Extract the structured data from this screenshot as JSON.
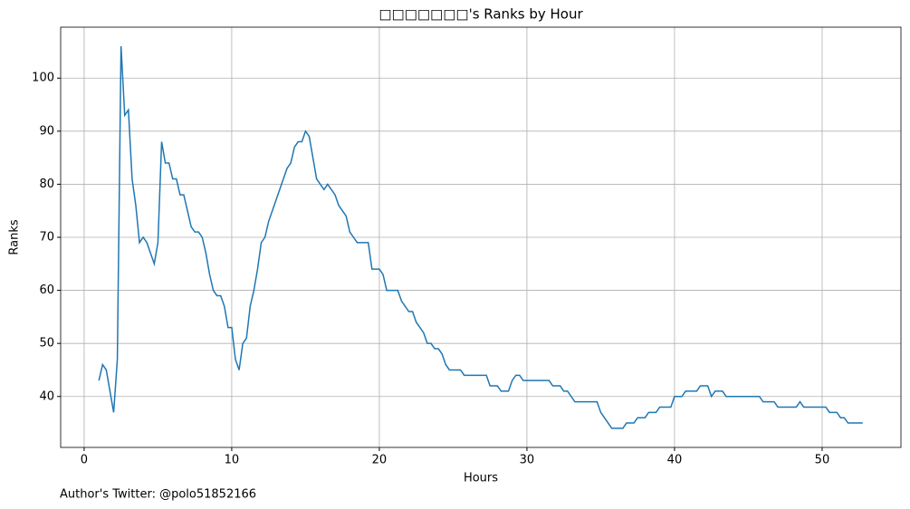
{
  "chart_data": {
    "type": "line",
    "title": "□□□□□□□'s Ranks by Hour",
    "xlabel": "Hours",
    "ylabel": "Ranks",
    "footnote": "Author's Twitter: @polo51852166",
    "x": [
      1,
      1.25,
      1.5,
      1.75,
      2,
      2.25,
      2.5,
      2.75,
      3,
      3.25,
      3.5,
      3.75,
      4,
      4.25,
      4.5,
      4.75,
      5,
      5.25,
      5.5,
      5.75,
      6,
      6.25,
      6.5,
      6.75,
      7,
      7.25,
      7.5,
      7.75,
      8,
      8.25,
      8.5,
      8.75,
      9,
      9.25,
      9.5,
      9.75,
      10,
      10.25,
      10.5,
      10.75,
      11,
      11.25,
      11.5,
      11.75,
      12,
      12.25,
      12.5,
      12.75,
      13,
      13.25,
      13.5,
      13.75,
      14,
      14.25,
      14.5,
      14.75,
      15,
      15.25,
      15.5,
      15.75,
      16,
      16.25,
      16.5,
      16.75,
      17,
      17.25,
      17.5,
      17.75,
      18,
      18.25,
      18.5,
      18.75,
      19,
      19.25,
      19.5,
      19.75,
      20,
      20.25,
      20.5,
      20.75,
      21,
      21.25,
      21.5,
      21.75,
      22,
      22.25,
      22.5,
      22.75,
      23,
      23.25,
      23.5,
      23.75,
      24,
      24.25,
      24.5,
      24.75,
      25,
      25.25,
      25.5,
      25.75,
      26,
      26.25,
      26.5,
      26.75,
      27,
      27.25,
      27.5,
      27.75,
      28,
      28.25,
      28.5,
      28.75,
      29,
      29.25,
      29.5,
      29.75,
      30,
      30.25,
      30.5,
      30.75,
      31,
      31.25,
      31.5,
      31.75,
      32,
      32.25,
      32.5,
      32.75,
      33,
      33.25,
      33.5,
      33.75,
      34,
      34.25,
      34.5,
      34.75,
      35,
      35.25,
      35.5,
      35.75,
      36,
      36.25,
      36.5,
      36.75,
      37,
      37.25,
      37.5,
      37.75,
      38,
      38.25,
      38.5,
      38.75,
      39,
      39.25,
      39.5,
      39.75,
      40,
      40.25,
      40.5,
      40.75,
      41,
      41.25,
      41.5,
      41.75,
      42,
      42.25,
      42.5,
      42.75,
      43,
      43.25,
      43.5,
      43.75,
      44,
      44.25,
      44.5,
      44.75,
      45,
      45.25,
      45.5,
      45.75,
      46,
      46.25,
      46.5,
      46.75,
      47,
      47.25,
      47.5,
      47.75,
      48,
      48.25,
      48.5,
      48.75,
      49,
      49.25,
      49.5,
      49.75,
      50,
      50.25,
      50.5,
      50.75,
      51,
      51.25,
      51.5,
      51.75,
      52,
      52.25,
      52.5,
      52.75
    ],
    "series": [
      {
        "color": "#1f77b4",
        "values": [
          43,
          46,
          45,
          41,
          37,
          47,
          106,
          93,
          94,
          81,
          76,
          69,
          70,
          69,
          67,
          65,
          69,
          88,
          84,
          84,
          81,
          81,
          78,
          78,
          75,
          72,
          71,
          71,
          70,
          67,
          63,
          60,
          59,
          59,
          57,
          53,
          53,
          47,
          45,
          50,
          51,
          57,
          60,
          64,
          69,
          70,
          73,
          75,
          77,
          79,
          81,
          83,
          84,
          87,
          88,
          88,
          90,
          89,
          85,
          81,
          80,
          79,
          80,
          79,
          78,
          76,
          75,
          74,
          71,
          70,
          69,
          69,
          69,
          69,
          64,
          64,
          64,
          63,
          60,
          60,
          60,
          60,
          58,
          57,
          56,
          56,
          54,
          53,
          52,
          50,
          50,
          49,
          49,
          48,
          46,
          45,
          45,
          45,
          45,
          44,
          44,
          44,
          44,
          44,
          44,
          44,
          42,
          42,
          42,
          41,
          41,
          41,
          43,
          44,
          44,
          43,
          43,
          43,
          43,
          43,
          43,
          43,
          43,
          42,
          42,
          42,
          41,
          41,
          40,
          39,
          39,
          39,
          39,
          39,
          39,
          39,
          37,
          36,
          35,
          34,
          34,
          34,
          34,
          35,
          35,
          35,
          36,
          36,
          36,
          37,
          37,
          37,
          38,
          38,
          38,
          38,
          40,
          40,
          40,
          41,
          41,
          41,
          41,
          42,
          42,
          42,
          40,
          41,
          41,
          41,
          40,
          40,
          40,
          40,
          40,
          40,
          40,
          40,
          40,
          40,
          39,
          39,
          39,
          39,
          38,
          38,
          38,
          38,
          38,
          38,
          39,
          38,
          38,
          38,
          38,
          38,
          38,
          38,
          37,
          37,
          37,
          36,
          36,
          35,
          35,
          35,
          35,
          35
        ]
      }
    ],
    "xlim": [
      -1.59,
      55.34
    ],
    "ylim": [
      30.4,
      109.6
    ],
    "xticks": [
      0,
      10,
      20,
      30,
      40,
      50
    ],
    "yticks": [
      40,
      50,
      60,
      70,
      80,
      90,
      100
    ],
    "grid": true
  }
}
